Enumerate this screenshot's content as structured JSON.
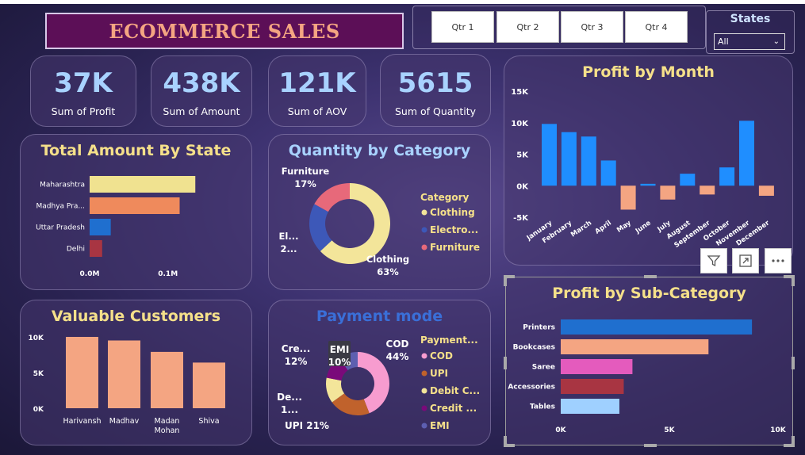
{
  "header": {
    "title": "ECOMMERCE SALES"
  },
  "quarters": [
    "Qtr 1",
    "Qtr 2",
    "Qtr 3",
    "Qtr 4"
  ],
  "states_filter": {
    "label": "States",
    "selected": "All"
  },
  "kpis": [
    {
      "value": "37K",
      "label": "Sum of Profit"
    },
    {
      "value": "438K",
      "label": "Sum of Amount"
    },
    {
      "value": "121K",
      "label": "Sum of AOV"
    },
    {
      "value": "5615",
      "label": "Sum of Quantity"
    }
  ],
  "colors": {
    "accent_blue": "#1f8eff",
    "salmon": "#f4a582",
    "yellow": "#f5e08a"
  },
  "chart_data": [
    {
      "id": "state",
      "type": "bar",
      "orientation": "horizontal",
      "title": "Total Amount By State",
      "categories": [
        "Maharashtra",
        "Madhya Pra...",
        "Uttar Pradesh",
        "Delhi"
      ],
      "values": [
        0.135,
        0.115,
        0.027,
        0.016
      ],
      "colors": [
        "#f0e290",
        "#ef8a5c",
        "#1f6fcf",
        "#a83542"
      ],
      "xticks": [
        "0.0M",
        "0.1M"
      ],
      "xlim": [
        0,
        0.155
      ]
    },
    {
      "id": "category",
      "type": "pie",
      "title": "Quantity by Category",
      "legend_title": "Category",
      "legend": [
        "Clothing",
        "Electro...",
        "Furniture"
      ],
      "values": [
        63,
        20,
        17
      ],
      "colors": [
        "#f3e59a",
        "#3d58b8",
        "#e7697a"
      ],
      "labels": [
        {
          "name": "Clothing",
          "pct": "63%"
        },
        {
          "name": "El...",
          "pct": "2..."
        },
        {
          "name": "Furniture",
          "pct": "17%"
        }
      ]
    },
    {
      "id": "month",
      "type": "bar",
      "title": "Profit by Month",
      "categories": [
        "January",
        "February",
        "March",
        "April",
        "May",
        "June",
        "July",
        "August",
        "September",
        "October",
        "November",
        "December"
      ],
      "values": [
        9800,
        8500,
        7800,
        4000,
        -3800,
        300,
        -2200,
        1900,
        -1400,
        2900,
        10300,
        -1600
      ],
      "ylim": [
        -5000,
        15000
      ],
      "yticks": [
        "-5K",
        "0K",
        "5K",
        "10K",
        "15K"
      ],
      "colors": {
        "positive": "#1f8eff",
        "negative": "#f4a582"
      }
    },
    {
      "id": "customers",
      "type": "bar",
      "title": "Valuable Customers",
      "categories": [
        "Harivansh",
        "Madhav",
        "Madan Mohan",
        "Shiva"
      ],
      "values": [
        10000,
        9500,
        7900,
        6400
      ],
      "ylim": [
        0,
        10000
      ],
      "yticks": [
        "0K",
        "5K",
        "10K"
      ],
      "color": "#f4a582"
    },
    {
      "id": "payment",
      "type": "pie",
      "title": "Payment mode",
      "legend_title": "Payment...",
      "legend": [
        "COD",
        "UPI",
        "Debit C...",
        "Credit ...",
        "EMI"
      ],
      "values": [
        44,
        21,
        13,
        12,
        10
      ],
      "colors": [
        "#f79ccf",
        "#c0622c",
        "#f3e59a",
        "#7a0a7a",
        "#5d5fb0"
      ],
      "labels": [
        {
          "name": "COD",
          "pct": "44%"
        },
        {
          "name": "UPI",
          "pct": "21%"
        },
        {
          "name": "De...",
          "pct": "1..."
        },
        {
          "name": "Cre...",
          "pct": "12%"
        },
        {
          "name": "EMI",
          "pct": "10%"
        }
      ]
    },
    {
      "id": "subcategory",
      "type": "bar",
      "orientation": "horizontal",
      "title": "Profit by Sub-Category",
      "categories": [
        "Printers",
        "Bookcases",
        "Saree",
        "Accessories",
        "Tables"
      ],
      "values": [
        8800,
        6800,
        3300,
        2900,
        2700
      ],
      "colors": [
        "#1f6fcf",
        "#f4a582",
        "#e45bbd",
        "#a83542",
        "#9fd0ff"
      ],
      "xlim": [
        0,
        10000
      ],
      "xticks": [
        "0K",
        "5K",
        "10K"
      ]
    }
  ]
}
